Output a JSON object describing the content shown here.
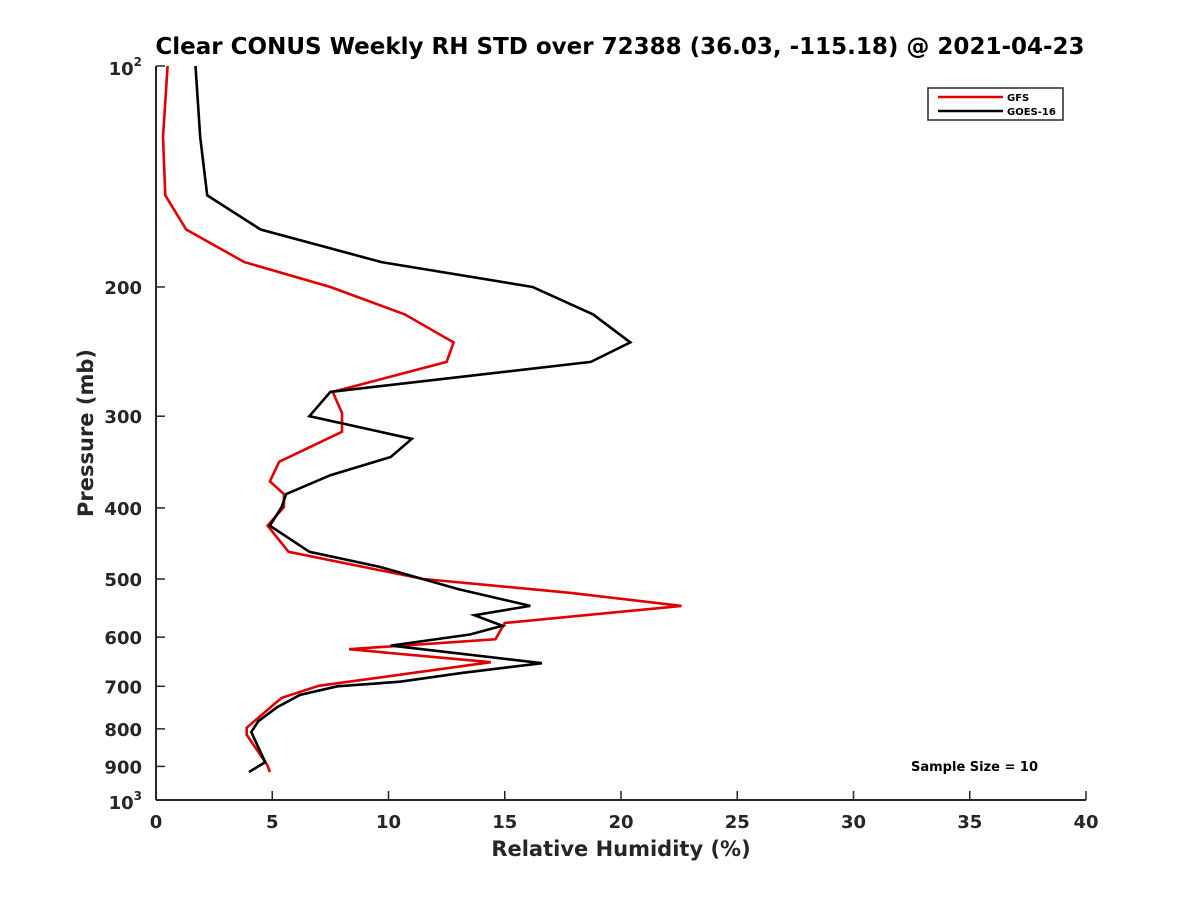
{
  "chart_data": {
    "type": "line",
    "title": "Clear CONUS Weekly RH STD over 72388 (36.03, -115.18) @ 2021-04-23",
    "xlabel": "Relative Humidity (%)",
    "ylabel": "Pressure (mb)",
    "xlim": [
      0,
      40
    ],
    "ylim": [
      1000,
      100
    ],
    "y_scale": "log",
    "y_reversed": true,
    "x_ticks": [
      "0",
      "5",
      "10",
      "15",
      "20",
      "25",
      "30",
      "35",
      "40"
    ],
    "y_ticks": [
      {
        "value": 100,
        "base": "10",
        "exp": "2"
      },
      {
        "value": 200,
        "label": "200"
      },
      {
        "value": 300,
        "label": "300"
      },
      {
        "value": 400,
        "label": "400"
      },
      {
        "value": 500,
        "label": "500"
      },
      {
        "value": 600,
        "label": "600"
      },
      {
        "value": 700,
        "label": "700"
      },
      {
        "value": 800,
        "label": "800"
      },
      {
        "value": 900,
        "label": "900"
      },
      {
        "value": 1000,
        "base": "10",
        "exp": "3"
      }
    ],
    "grid": false,
    "legend_position": "top-right",
    "annotation": "Sample Size = 10",
    "series": [
      {
        "name": "GFS",
        "color": "#e00000",
        "points": [
          [
            0.5,
            100
          ],
          [
            0.3,
            125
          ],
          [
            0.4,
            150
          ],
          [
            1.3,
            167
          ],
          [
            3.8,
            185
          ],
          [
            7.5,
            200
          ],
          [
            10.7,
            218
          ],
          [
            12.8,
            238
          ],
          [
            12.5,
            253
          ],
          [
            7.6,
            278
          ],
          [
            8.0,
            297
          ],
          [
            8.0,
            315
          ],
          [
            5.3,
            346
          ],
          [
            4.9,
            368
          ],
          [
            5.5,
            383
          ],
          [
            5.5,
            399
          ],
          [
            4.8,
            423
          ],
          [
            5.7,
            459
          ],
          [
            11.5,
            500
          ],
          [
            17.8,
            522
          ],
          [
            22.6,
            544
          ],
          [
            15.0,
            574
          ],
          [
            14.6,
            604
          ],
          [
            8.3,
            623
          ],
          [
            14.4,
            649
          ],
          [
            7.0,
            699
          ],
          [
            5.4,
            726
          ],
          [
            4.7,
            758
          ],
          [
            3.9,
            797
          ],
          [
            3.9,
            815
          ],
          [
            4.8,
            898
          ],
          [
            4.9,
            916
          ]
        ]
      },
      {
        "name": "GOES-16",
        "color": "#000000",
        "points": [
          [
            1.7,
            100
          ],
          [
            1.9,
            125
          ],
          [
            2.2,
            150
          ],
          [
            4.5,
            167
          ],
          [
            9.7,
            185
          ],
          [
            16.2,
            200
          ],
          [
            18.8,
            218
          ],
          [
            20.4,
            238
          ],
          [
            18.7,
            253
          ],
          [
            7.5,
            278
          ],
          [
            6.6,
            300
          ],
          [
            11.0,
            322
          ],
          [
            10.1,
            341
          ],
          [
            7.5,
            361
          ],
          [
            5.6,
            383
          ],
          [
            5.4,
            399
          ],
          [
            4.9,
            423
          ],
          [
            6.6,
            459
          ],
          [
            9.6,
            481
          ],
          [
            13.0,
            516
          ],
          [
            16.1,
            544
          ],
          [
            13.7,
            560
          ],
          [
            14.9,
            579
          ],
          [
            13.5,
            595
          ],
          [
            10.1,
            616
          ],
          [
            16.6,
            651
          ],
          [
            13.2,
            671
          ],
          [
            10.5,
            690
          ],
          [
            7.8,
            700
          ],
          [
            6.2,
            719
          ],
          [
            5.2,
            748
          ],
          [
            4.4,
            781
          ],
          [
            4.1,
            808
          ],
          [
            4.5,
            861
          ],
          [
            4.7,
            888
          ],
          [
            4.0,
            916
          ]
        ]
      }
    ]
  }
}
